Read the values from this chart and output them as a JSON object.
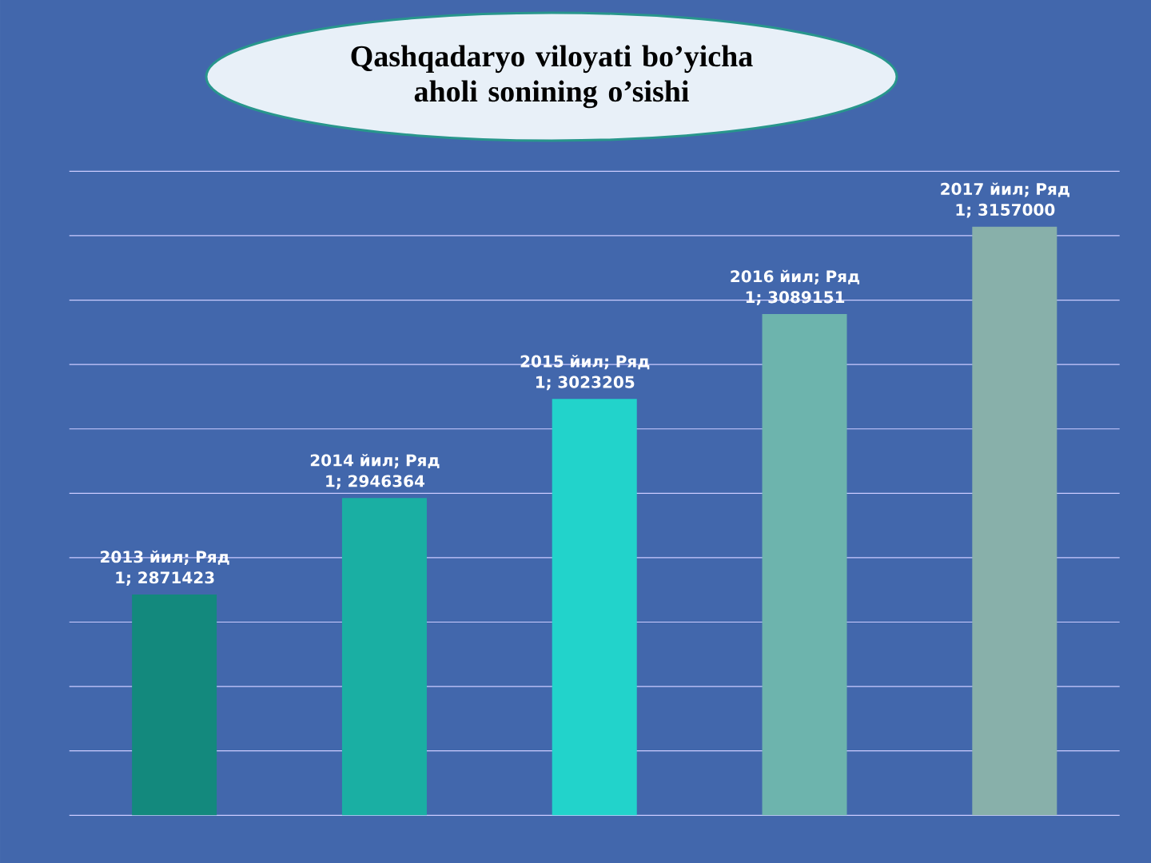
{
  "chart_data": {
    "type": "bar",
    "title": "Qashqadaryo viloyati bo’yicha aholi sonining o’sishi",
    "categories": [
      null,
      null,
      null,
      null,
      null
    ],
    "values": [
      2871423,
      2946364,
      3023205,
      3089151,
      3157000
    ],
    "colors": [
      "#13897d",
      "#1aafa3",
      "#22d3cb",
      "#6db4ad",
      "#88b0aa"
    ],
    "value_labels": [
      "2013 йил; Ряд 1; 2871423",
      "2014 йил; Ряд 1; 2946364",
      "2015 йил; Ряд 1; 3023205",
      "2016 йил; Ряд 1; 3089151",
      "2017 йил; Ряд 1; 3157000"
    ],
    "ylim": [
      2700000,
      3200000
    ],
    "yticks": [
      {
        "value": 2700000,
        "label": null
      },
      {
        "value": 2750000,
        "label": null
      },
      {
        "value": 2800000,
        "label": null
      },
      {
        "value": 2850000,
        "label": null
      },
      {
        "value": 2900000,
        "label": null
      },
      {
        "value": 2950000,
        "label": null
      },
      {
        "value": 3000000,
        "label": null
      },
      {
        "value": 3050000,
        "label": null
      },
      {
        "value": 3100000,
        "label": null
      },
      {
        "value": 3150000,
        "label": null
      },
      {
        "value": 3200000,
        "label": null
      }
    ],
    "grid": "y"
  }
}
